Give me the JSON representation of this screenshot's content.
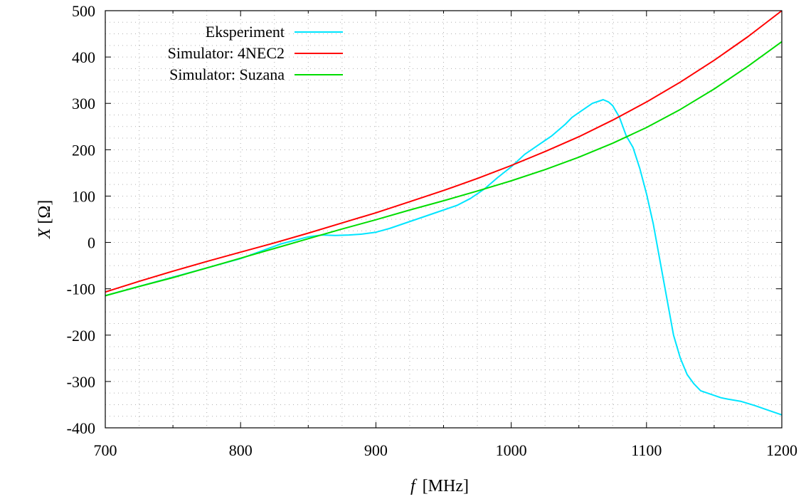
{
  "chart_data": {
    "type": "line",
    "xlabel_var": "f",
    "xlabel_unit": "[MHz]",
    "ylabel_var": "X",
    "ylabel_unit": "[Ω]",
    "xlim": [
      700,
      1200
    ],
    "ylim": [
      -400,
      500
    ],
    "x_ticks": [
      700,
      800,
      900,
      1000,
      1100,
      1200
    ],
    "y_ticks": [
      -400,
      -300,
      -200,
      -100,
      0,
      100,
      200,
      300,
      400,
      500
    ],
    "x_minor_step": 25,
    "y_minor_step": 25,
    "grid": true,
    "legend_position": "top-left",
    "series": [
      {
        "name": "Eksperiment",
        "color": "#00e5ff",
        "x": [
          700,
          750,
          800,
          830,
          850,
          860,
          870,
          880,
          890,
          900,
          910,
          920,
          930,
          940,
          950,
          960,
          970,
          980,
          990,
          1000,
          1010,
          1020,
          1030,
          1040,
          1045,
          1050,
          1055,
          1060,
          1065,
          1068,
          1072,
          1075,
          1080,
          1085,
          1090,
          1095,
          1100,
          1105,
          1110,
          1115,
          1120,
          1125,
          1130,
          1135,
          1140,
          1145,
          1150,
          1155,
          1160,
          1170,
          1180,
          1190,
          1200
        ],
        "y": [
          -115,
          -75,
          -35,
          -3,
          12,
          16,
          15,
          16,
          18,
          22,
          30,
          40,
          50,
          60,
          70,
          80,
          95,
          115,
          140,
          163,
          190,
          210,
          230,
          255,
          270,
          280,
          290,
          300,
          305,
          308,
          303,
          295,
          270,
          230,
          205,
          160,
          105,
          40,
          -40,
          -120,
          -200,
          -250,
          -285,
          -305,
          -320,
          -325,
          -330,
          -335,
          -338,
          -343,
          -352,
          -362,
          -372
        ]
      },
      {
        "name": "Simulator: 4NEC2",
        "color": "#ff0000",
        "x": [
          700,
          725,
          750,
          775,
          800,
          825,
          850,
          875,
          900,
          925,
          950,
          975,
          1000,
          1025,
          1050,
          1075,
          1100,
          1125,
          1150,
          1175,
          1200
        ],
        "y": [
          -107,
          -84,
          -62,
          -41,
          -21,
          -1,
          20,
          42,
          64,
          88,
          112,
          138,
          166,
          196,
          228,
          264,
          303,
          346,
          393,
          444,
          500
        ]
      },
      {
        "name": "Simulator: Suzana",
        "color": "#00dd00",
        "x": [
          700,
          725,
          750,
          775,
          800,
          825,
          850,
          875,
          900,
          925,
          950,
          975,
          1000,
          1025,
          1050,
          1075,
          1100,
          1125,
          1150,
          1175,
          1200
        ],
        "y": [
          -115,
          -95,
          -76,
          -55,
          -34,
          -13,
          8,
          29,
          49,
          70,
          90,
          111,
          133,
          157,
          184,
          214,
          248,
          287,
          331,
          380,
          433
        ]
      }
    ]
  }
}
